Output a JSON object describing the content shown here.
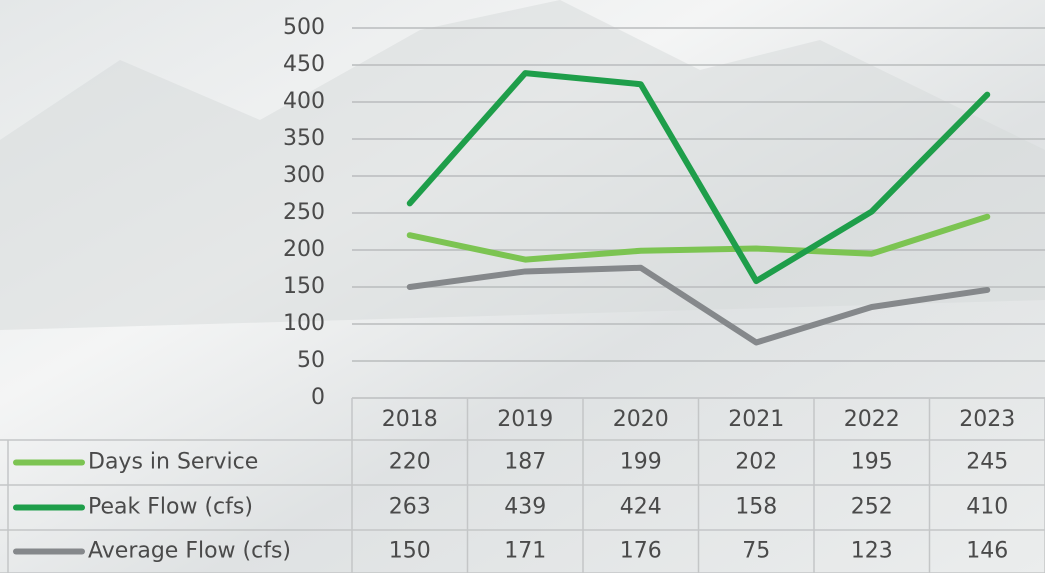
{
  "chart_data": {
    "type": "line",
    "categories": [
      "2018",
      "2019",
      "2020",
      "2021",
      "2022",
      "2023"
    ],
    "series": [
      {
        "name": "Days in Service",
        "color": "#7cc452",
        "values": [
          220,
          187,
          199,
          202,
          195,
          245
        ]
      },
      {
        "name": "Peak Flow (cfs)",
        "color": "#1e9e4a",
        "values": [
          263,
          439,
          424,
          158,
          252,
          410
        ]
      },
      {
        "name": "Average Flow (cfs)",
        "color": "#85888b",
        "values": [
          150,
          171,
          176,
          75,
          123,
          146
        ]
      }
    ],
    "ylim": [
      0,
      500
    ],
    "yticks": [
      0,
      50,
      100,
      150,
      200,
      250,
      300,
      350,
      400,
      450,
      500
    ],
    "grid": true
  }
}
